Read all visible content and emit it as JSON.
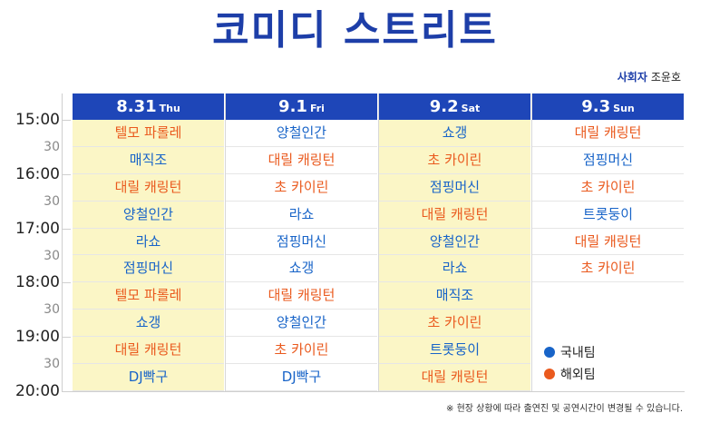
{
  "title": "코미디 스트리트",
  "host": {
    "label": "사회자",
    "name": "조윤호"
  },
  "times": [
    {
      "label": "15:00",
      "kind": "hour"
    },
    {
      "label": "30",
      "kind": "half"
    },
    {
      "label": "16:00",
      "kind": "hour"
    },
    {
      "label": "30",
      "kind": "half"
    },
    {
      "label": "17:00",
      "kind": "hour"
    },
    {
      "label": "30",
      "kind": "half"
    },
    {
      "label": "18:00",
      "kind": "hour"
    },
    {
      "label": "30",
      "kind": "half"
    },
    {
      "label": "19:00",
      "kind": "hour"
    },
    {
      "label": "30",
      "kind": "half"
    },
    {
      "label": "20:00",
      "kind": "hour"
    }
  ],
  "colors": {
    "domestic": "#1864c8",
    "international": "#ea5a1e",
    "header": "#1e46b8",
    "shade": "#fbf6c6"
  },
  "days": [
    {
      "date": "8.31",
      "weekday": "Thu",
      "shaded": true,
      "slots": [
        {
          "name": "텔모 파롤레",
          "team": "intl"
        },
        {
          "name": "매직조",
          "team": "dom"
        },
        {
          "name": "대릴 캐링턴",
          "team": "intl"
        },
        {
          "name": "양철인간",
          "team": "dom"
        },
        {
          "name": "라쇼",
          "team": "dom"
        },
        {
          "name": "점핑머신",
          "team": "dom"
        },
        {
          "name": "텔모 파롤레",
          "team": "intl"
        },
        {
          "name": "쇼갱",
          "team": "dom"
        },
        {
          "name": "대릴 캐링턴",
          "team": "intl"
        },
        {
          "name": "DJ빡구",
          "team": "dom"
        }
      ]
    },
    {
      "date": "9.1",
      "weekday": "Fri",
      "shaded": false,
      "slots": [
        {
          "name": "양철인간",
          "team": "dom"
        },
        {
          "name": "대릴 캐링턴",
          "team": "intl"
        },
        {
          "name": "초 카이린",
          "team": "intl"
        },
        {
          "name": "라쇼",
          "team": "dom"
        },
        {
          "name": "점핑머신",
          "team": "dom"
        },
        {
          "name": "쇼갱",
          "team": "dom"
        },
        {
          "name": "대릴 캐링턴",
          "team": "intl"
        },
        {
          "name": "양철인간",
          "team": "dom"
        },
        {
          "name": "초 카이린",
          "team": "intl"
        },
        {
          "name": "DJ빡구",
          "team": "dom"
        }
      ]
    },
    {
      "date": "9.2",
      "weekday": "Sat",
      "shaded": true,
      "slots": [
        {
          "name": "쇼갱",
          "team": "dom"
        },
        {
          "name": "초 카이린",
          "team": "intl"
        },
        {
          "name": "점핑머신",
          "team": "dom"
        },
        {
          "name": "대릴 캐링턴",
          "team": "intl"
        },
        {
          "name": "양철인간",
          "team": "dom"
        },
        {
          "name": "라쇼",
          "team": "dom"
        },
        {
          "name": "매직조",
          "team": "dom"
        },
        {
          "name": "초 카이린",
          "team": "intl"
        },
        {
          "name": "트롯둥이",
          "team": "dom"
        },
        {
          "name": "대릴 캐링턴",
          "team": "intl"
        }
      ]
    },
    {
      "date": "9.3",
      "weekday": "Sun",
      "shaded": false,
      "slots": [
        {
          "name": "대릴 캐링턴",
          "team": "intl"
        },
        {
          "name": "점핑머신",
          "team": "dom"
        },
        {
          "name": "초 카이린",
          "team": "intl"
        },
        {
          "name": "트롯둥이",
          "team": "dom"
        },
        {
          "name": "대릴 캐링턴",
          "team": "intl"
        },
        {
          "name": "초 카이린",
          "team": "intl"
        },
        {
          "name": "",
          "team": ""
        },
        {
          "name": "",
          "team": ""
        },
        {
          "name": "",
          "team": ""
        },
        {
          "name": "",
          "team": ""
        }
      ]
    }
  ],
  "legend": [
    {
      "label": "국내팀",
      "color": "#1864c8"
    },
    {
      "label": "해외팀",
      "color": "#ea5a1e"
    }
  ],
  "notice": "※ 현장 상황에 따라 출연진 및 공연시간이 변경될 수 있습니다."
}
